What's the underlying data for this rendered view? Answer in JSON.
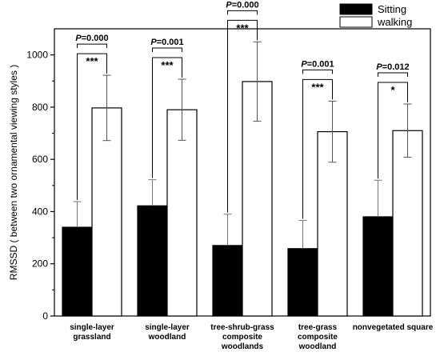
{
  "chart_data": {
    "type": "bar",
    "ylabel": "RMSSD ( between two ornamental viewing styles )",
    "ylim": [
      0,
      1100
    ],
    "yticks": [
      0,
      200,
      400,
      600,
      800,
      1000
    ],
    "categories": [
      [
        "single-layer",
        "grassland"
      ],
      [
        "single-layer",
        "woodland"
      ],
      [
        "tree-shrub-grass",
        "composite",
        "woodlands"
      ],
      [
        "tree-grass",
        "composite",
        "woodland"
      ],
      [
        "nonvegetated square"
      ]
    ],
    "series": [
      {
        "name": "Sitting",
        "color": "#000000",
        "values": [
          340,
          422,
          270,
          258,
          380
        ],
        "errors": [
          98,
          100,
          120,
          108,
          140
        ]
      },
      {
        "name": "walking",
        "color": "#ffffff",
        "values": [
          797,
          790,
          898,
          706,
          710
        ],
        "errors": [
          125,
          117,
          152,
          117,
          102
        ]
      }
    ],
    "significance": [
      {
        "p": "P=0.000",
        "stars": "***"
      },
      {
        "p": "P=0.001",
        "stars": "***"
      },
      {
        "p": "P=0.000",
        "stars": "***"
      },
      {
        "p": "P=0.001",
        "stars": "***"
      },
      {
        "p": "P=0.012",
        "stars": "*"
      }
    ],
    "legend_position": "top-right"
  }
}
